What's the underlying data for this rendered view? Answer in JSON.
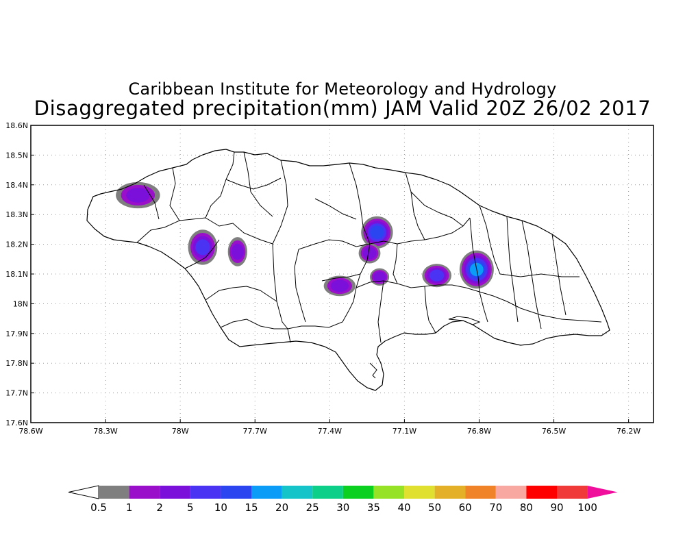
{
  "title_line1": "Caribbean Institute for Meteorology and Hydrology",
  "title_line2": "Disaggregated precipitation(mm) JAM Valid 20Z 26/02 2017",
  "map": {
    "lon_range": [
      -78.6,
      -76.1
    ],
    "lat_range": [
      17.6,
      18.6
    ],
    "x_ticks": [
      {
        "value": -78.6,
        "label": "78.6W"
      },
      {
        "value": -78.3,
        "label": "78.3W"
      },
      {
        "value": -78.0,
        "label": "78W"
      },
      {
        "value": -77.7,
        "label": "77.7W"
      },
      {
        "value": -77.4,
        "label": "77.4W"
      },
      {
        "value": -77.1,
        "label": "77.1W"
      },
      {
        "value": -76.8,
        "label": "76.8W"
      },
      {
        "value": -76.5,
        "label": "76.5W"
      },
      {
        "value": -76.2,
        "label": "76.2W"
      }
    ],
    "y_ticks": [
      {
        "value": 18.6,
        "label": "18.6N"
      },
      {
        "value": 18.5,
        "label": "18.5N"
      },
      {
        "value": 18.4,
        "label": "18.4N"
      },
      {
        "value": 18.3,
        "label": "18.3N"
      },
      {
        "value": 18.2,
        "label": "18.2N"
      },
      {
        "value": 18.1,
        "label": "18.1N"
      },
      {
        "value": 18.0,
        "label": "18N"
      },
      {
        "value": 17.9,
        "label": "17.9N"
      },
      {
        "value": 17.8,
        "label": "17.8N"
      },
      {
        "value": 17.7,
        "label": "17.7N"
      },
      {
        "value": 17.6,
        "label": "17.6N"
      }
    ],
    "grid": "dotted",
    "precip_cells": [
      {
        "lon": -78.17,
        "lat": 18.365,
        "rx": 0.075,
        "ry": 0.035,
        "levels": [
          0.5,
          1,
          2
        ]
      },
      {
        "lon": -77.91,
        "lat": 18.19,
        "rx": 0.045,
        "ry": 0.05,
        "levels": [
          0.5,
          1,
          2,
          5
        ]
      },
      {
        "lon": -77.77,
        "lat": 18.175,
        "rx": 0.025,
        "ry": 0.04,
        "levels": [
          0.5,
          1,
          2
        ]
      },
      {
        "lon": -77.21,
        "lat": 18.24,
        "rx": 0.05,
        "ry": 0.045,
        "levels": [
          0.5,
          1,
          2,
          5,
          10
        ]
      },
      {
        "lon": -77.24,
        "lat": 18.17,
        "rx": 0.03,
        "ry": 0.025,
        "levels": [
          0.5,
          1,
          2
        ]
      },
      {
        "lon": -77.36,
        "lat": 18.06,
        "rx": 0.05,
        "ry": 0.025,
        "levels": [
          0.5,
          1,
          2
        ]
      },
      {
        "lon": -77.2,
        "lat": 18.09,
        "rx": 0.025,
        "ry": 0.02,
        "levels": [
          0.5,
          1,
          2
        ]
      },
      {
        "lon": -76.97,
        "lat": 18.095,
        "rx": 0.045,
        "ry": 0.03,
        "levels": [
          0.5,
          1,
          2,
          5
        ]
      },
      {
        "lon": -76.81,
        "lat": 18.115,
        "rx": 0.055,
        "ry": 0.055,
        "levels": [
          0.5,
          1,
          2,
          5,
          10,
          15
        ]
      }
    ]
  },
  "colorbar": {
    "colors": [
      "#ffffff",
      "#7f7f7f",
      "#9a0fc9",
      "#7a10d9",
      "#4a33f3",
      "#2b45f0",
      "#0a9cf6",
      "#14c4c8",
      "#0cd08a",
      "#0bd01f",
      "#95e227",
      "#e0e030",
      "#e3b028",
      "#f08228",
      "#f8a8a0",
      "#ff0000",
      "#f03a3a",
      "#ef0f9c"
    ],
    "labels": [
      "0.5",
      "1",
      "2",
      "5",
      "10",
      "15",
      "20",
      "25",
      "30",
      "35",
      "40",
      "50",
      "60",
      "70",
      "80",
      "90",
      "100"
    ]
  }
}
